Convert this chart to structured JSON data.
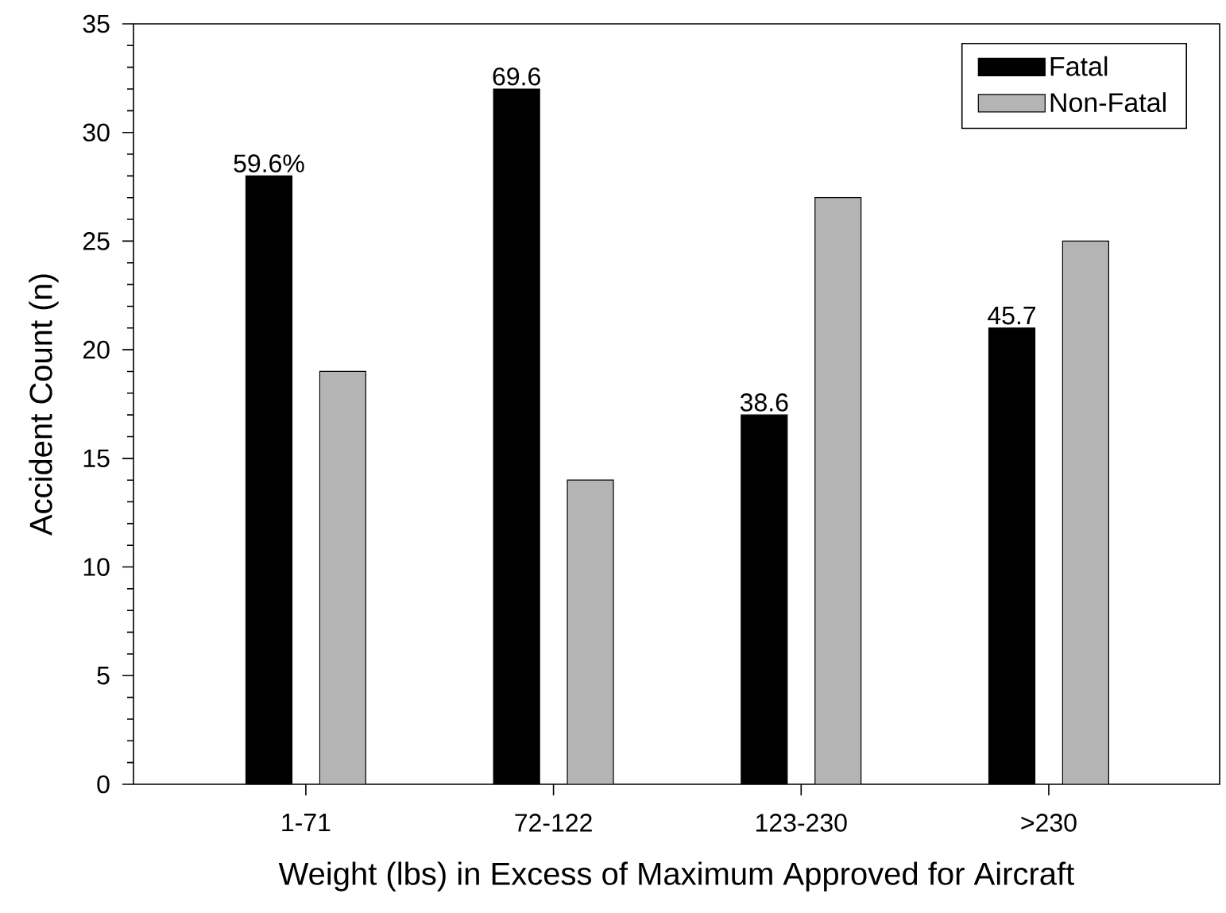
{
  "chart_data": {
    "type": "bar",
    "xlabel": "Weight (lbs) in Excess of Maximum Approved for Aircraft",
    "ylabel": "Accident Count (n)",
    "categories": [
      "1-71",
      "72-122",
      "123-230",
      ">230"
    ],
    "series": [
      {
        "name": "Fatal",
        "color": "#000000",
        "values": [
          28,
          32,
          17,
          21
        ]
      },
      {
        "name": "Non-Fatal",
        "color": "#b4b4b4",
        "values": [
          19,
          14,
          27,
          25
        ]
      }
    ],
    "ylim": [
      0,
      35
    ],
    "yticks": [
      0,
      5,
      10,
      15,
      20,
      25,
      30,
      35
    ],
    "grid": false,
    "legend": "top right",
    "annotations": [
      "59.6%",
      "69.6",
      "38.6",
      "45.7"
    ]
  }
}
